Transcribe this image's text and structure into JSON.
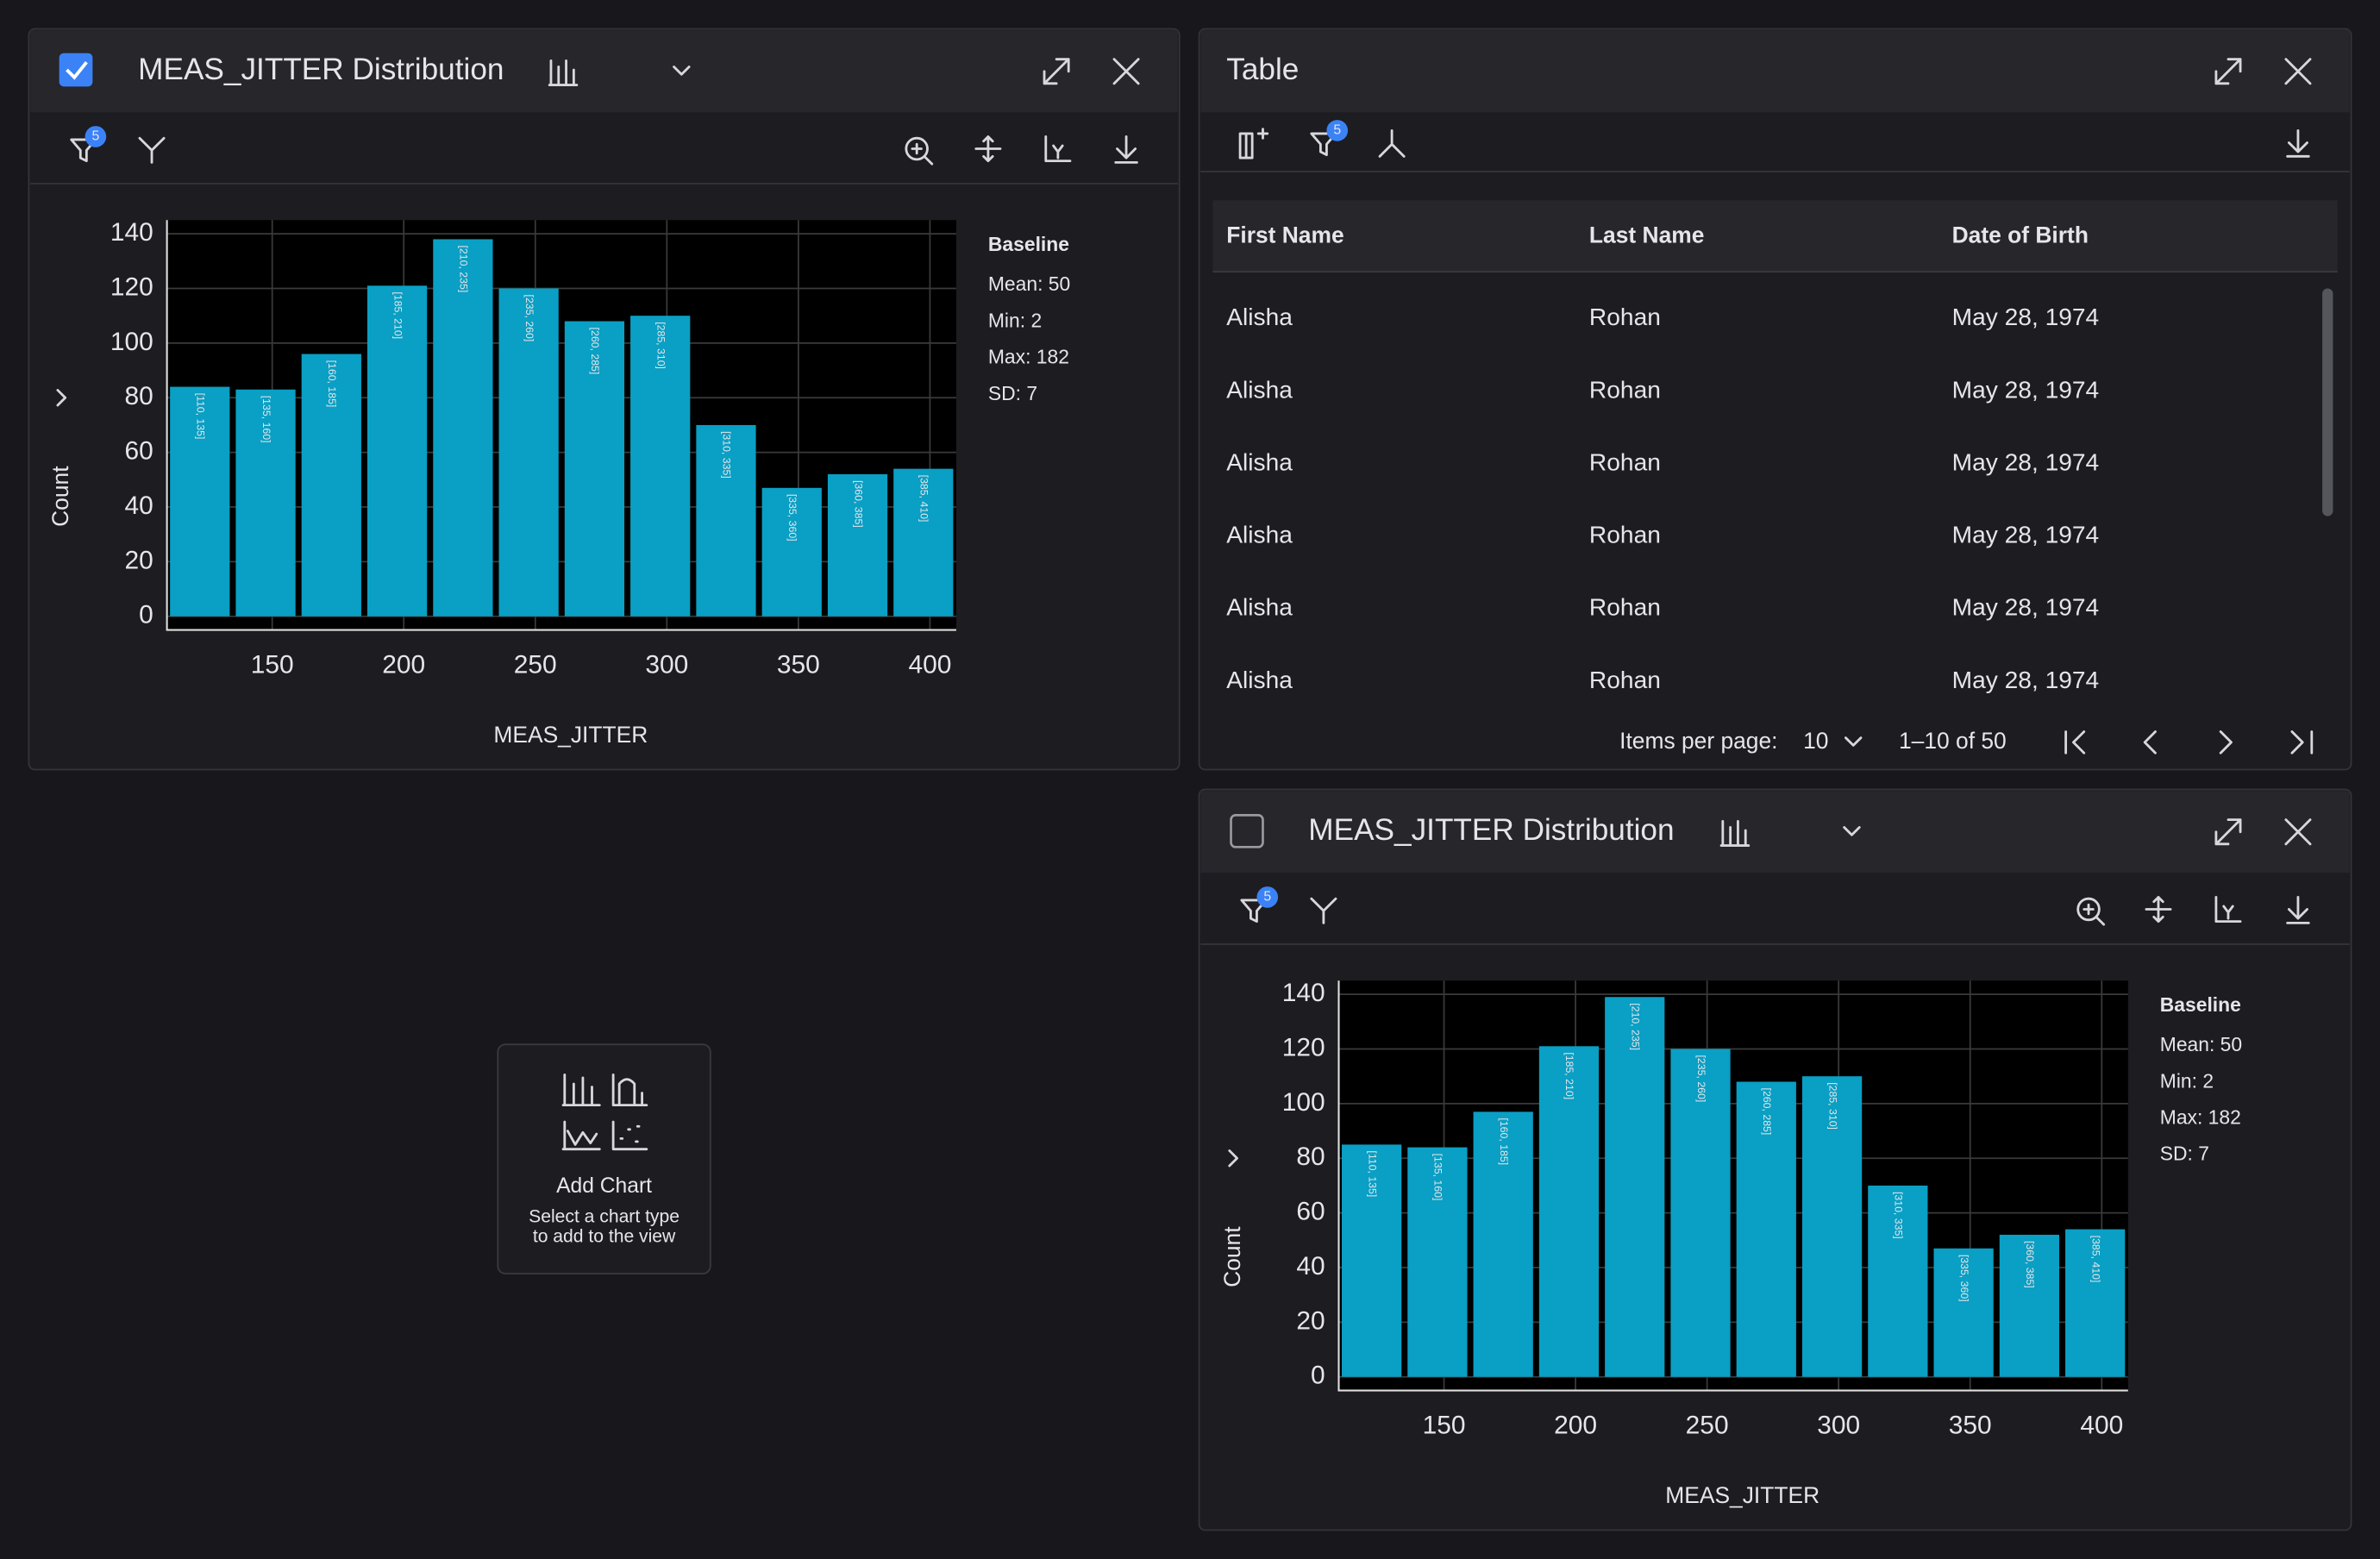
{
  "chart_data": [
    {
      "type": "histogram",
      "title": "MEAS_JITTER Distribution",
      "xlabel": "MEAS_JITTER",
      "ylabel": "Count",
      "bins": [
        110,
        135,
        160,
        185,
        210,
        235,
        260,
        285,
        310,
        335,
        360,
        385,
        410
      ],
      "values": [
        84,
        83,
        96,
        121,
        138,
        120,
        108,
        110,
        70,
        47,
        52,
        54
      ],
      "bar_labels": [
        "[110, 135]",
        "[135, 160]",
        "[160, 185]",
        "[185, 210]",
        "[210, 235]",
        "[235, 260]",
        "[260, 285]",
        "[285, 310]",
        "[310, 335]",
        "[335, 360]",
        "[360, 385]",
        "[385, 410]"
      ],
      "color": "#0a9fc4",
      "xlim": [
        110,
        410
      ],
      "ylim": [
        0,
        150
      ],
      "xticks": [
        150,
        200,
        250,
        300,
        350,
        400
      ],
      "yticks": [
        0,
        20,
        40,
        60,
        80,
        100,
        120,
        140
      ],
      "grid": true,
      "stats_title": "Baseline",
      "stats": [
        "Mean: 50",
        "Min: 2",
        "Max: 182",
        "SD: 7"
      ],
      "filter_badge": "5",
      "checked": true
    },
    {
      "type": "histogram",
      "title": "MEAS_JITTER Distribution",
      "xlabel": "MEAS_JITTER",
      "ylabel": "Count",
      "bins": [
        110,
        135,
        160,
        185,
        210,
        235,
        260,
        285,
        310,
        335,
        360,
        385,
        410
      ],
      "values": [
        85,
        84,
        97,
        121,
        139,
        120,
        108,
        110,
        70,
        47,
        52,
        54
      ],
      "bar_labels": [
        "[110, 135]",
        "[135, 160]",
        "[160, 185]",
        "[185, 210]",
        "[210, 235]",
        "[235, 260]",
        "[260, 285]",
        "[285, 310]",
        "[310, 335]",
        "[335, 360]",
        "[360, 385]",
        "[385, 410]"
      ],
      "color": "#0a9fc4",
      "xlim": [
        110,
        410
      ],
      "ylim": [
        0,
        150
      ],
      "xticks": [
        150,
        200,
        250,
        300,
        350,
        400
      ],
      "yticks": [
        0,
        20,
        40,
        60,
        80,
        100,
        120,
        140
      ],
      "grid": true,
      "stats_title": "Baseline",
      "stats": [
        "Mean: 50",
        "Min: 2",
        "Max: 182",
        "SD: 7"
      ],
      "filter_badge": "5",
      "checked": false
    }
  ],
  "table": {
    "title": "Table",
    "filter_badge": "5",
    "columns": [
      "First Name",
      "Last Name",
      "Date of Birth"
    ],
    "rows": [
      [
        "Alisha",
        "Rohan",
        "May 28, 1974"
      ],
      [
        "Alisha",
        "Rohan",
        "May 28, 1974"
      ],
      [
        "Alisha",
        "Rohan",
        "May 28, 1974"
      ],
      [
        "Alisha",
        "Rohan",
        "May 28, 1974"
      ],
      [
        "Alisha",
        "Rohan",
        "May 28, 1974"
      ],
      [
        "Alisha",
        "Rohan",
        "May 28, 1974"
      ]
    ],
    "items_per_page_label": "Items per page:",
    "items_per_page": "10",
    "range": "1–10 of 50"
  },
  "add_chart": {
    "title": "Add Chart",
    "hint": [
      "Select a chart type",
      "to add to the view"
    ]
  }
}
